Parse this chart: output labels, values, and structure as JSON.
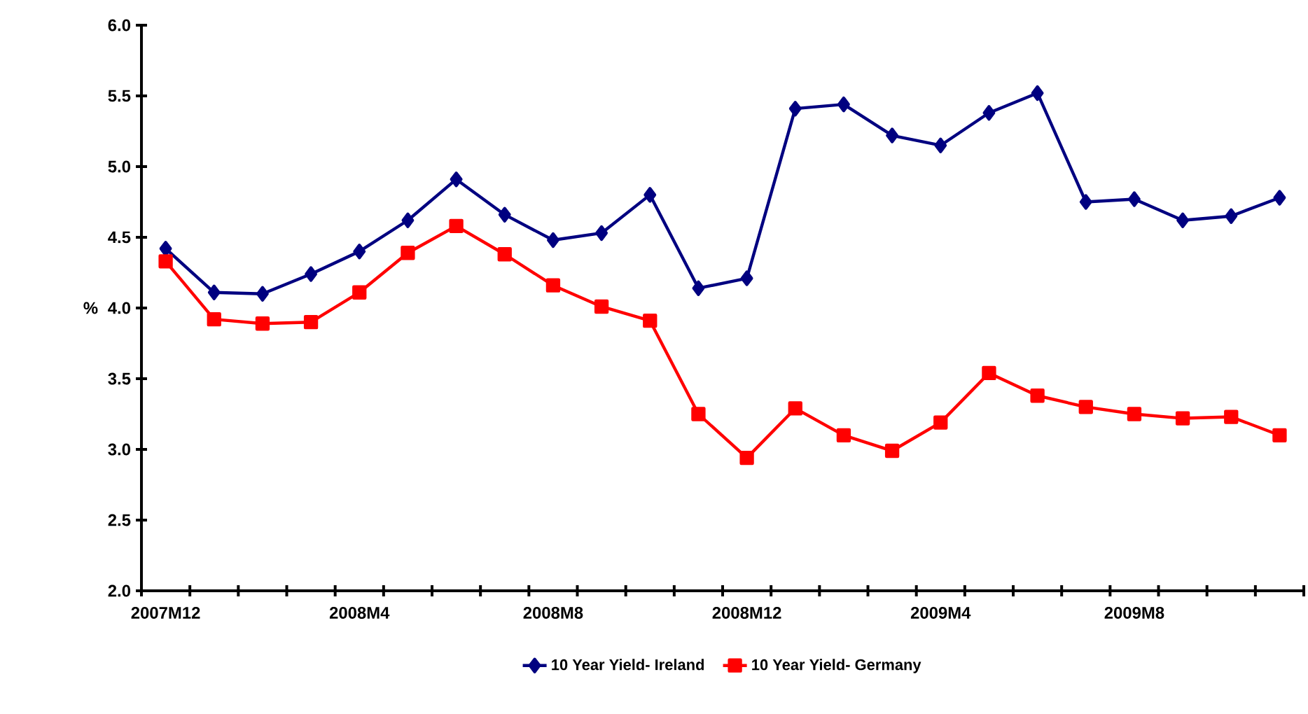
{
  "chart_data": {
    "type": "line",
    "ylabel": "%",
    "categories": [
      "2007M12",
      null,
      null,
      null,
      "2008M4",
      null,
      null,
      null,
      "2008M8",
      null,
      null,
      null,
      "2008M12",
      null,
      null,
      null,
      "2009M4",
      null,
      null,
      null,
      "2009M8",
      null,
      null,
      null
    ],
    "series": [
      {
        "name": "10 Year Yield- Ireland",
        "color": "#000080",
        "marker": "diamond",
        "values": [
          4.42,
          4.11,
          4.1,
          4.24,
          4.4,
          4.62,
          4.91,
          4.66,
          4.48,
          4.53,
          4.8,
          4.14,
          4.21,
          5.41,
          5.44,
          5.22,
          5.15,
          5.38,
          5.52,
          4.75,
          4.77,
          4.62,
          4.65,
          4.78
        ]
      },
      {
        "name": "10 Year Yield- Germany",
        "color": "#ff0000",
        "marker": "square",
        "values": [
          4.33,
          3.92,
          3.89,
          3.9,
          4.11,
          4.39,
          4.58,
          4.38,
          4.16,
          4.01,
          3.91,
          3.25,
          2.94,
          3.29,
          3.1,
          2.99,
          3.19,
          3.54,
          3.38,
          3.3,
          3.25,
          3.22,
          3.23,
          3.1
        ]
      }
    ],
    "ylim": [
      2.0,
      6.0
    ],
    "yticks": [
      {
        "value": 2.0,
        "label": "2.0"
      },
      {
        "value": 2.5,
        "label": "2.5"
      },
      {
        "value": 3.0,
        "label": "3.0"
      },
      {
        "value": 3.5,
        "label": "3.5"
      },
      {
        "value": 4.0,
        "label": "4.0"
      },
      {
        "value": 4.5,
        "label": "4.5"
      },
      {
        "value": 5.0,
        "label": "5.0"
      },
      {
        "value": 5.5,
        "label": "5.5"
      },
      {
        "value": 6.0,
        "label": "6.0"
      }
    ],
    "grid": false,
    "legend": "bottom",
    "line_style": "solid"
  }
}
